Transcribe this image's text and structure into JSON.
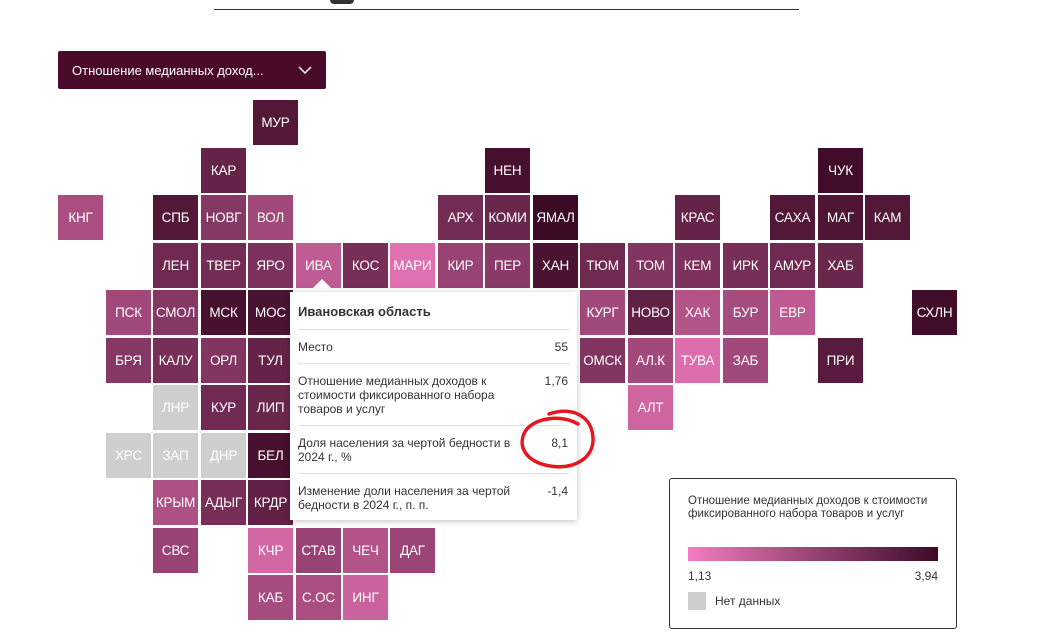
{
  "selector": {
    "label": "Отношение медианных доход...",
    "icon": "chevron-down-icon"
  },
  "colors": {
    "low": "#f27cbf",
    "high": "#3d0a26",
    "no_data": "#cfcfcf",
    "annotation": "#e8141e"
  },
  "tiles": [
    {
      "code": "МУР",
      "value": 0.88
    },
    {
      "code": "КАР",
      "value": 0.78
    },
    {
      "code": "НЕН",
      "value": 0.95
    },
    {
      "code": "ЧУК",
      "value": 0.98
    },
    {
      "code": "КНГ",
      "value": 0.4
    },
    {
      "code": "СПБ",
      "value": 0.88
    },
    {
      "code": "НОВГ",
      "value": 0.6
    },
    {
      "code": "ВОЛ",
      "value": 0.45
    },
    {
      "code": "АРХ",
      "value": 0.7
    },
    {
      "code": "КОМИ",
      "value": 0.75
    },
    {
      "code": "ЯМАЛ",
      "value": 1.0
    },
    {
      "code": "КРАС",
      "value": 0.78
    },
    {
      "code": "САХА",
      "value": 0.88
    },
    {
      "code": "МАГ",
      "value": 0.9
    },
    {
      "code": "КАМ",
      "value": 0.88
    },
    {
      "code": "ЛЕН",
      "value": 0.72
    },
    {
      "code": "ТВЕР",
      "value": 0.7
    },
    {
      "code": "ЯРО",
      "value": 0.65
    },
    {
      "code": "ИВА",
      "value": 0.28,
      "active": true
    },
    {
      "code": "КОС",
      "value": 0.68
    },
    {
      "code": "МАРИ",
      "value": 0.1
    },
    {
      "code": "КИР",
      "value": 0.5
    },
    {
      "code": "ПЕР",
      "value": 0.58
    },
    {
      "code": "ХАН",
      "value": 0.92
    },
    {
      "code": "ТЮМ",
      "value": 0.72
    },
    {
      "code": "ТОМ",
      "value": 0.62
    },
    {
      "code": "КЕМ",
      "value": 0.65
    },
    {
      "code": "ИРК",
      "value": 0.68
    },
    {
      "code": "АМУР",
      "value": 0.72
    },
    {
      "code": "ХАБ",
      "value": 0.75
    },
    {
      "code": "ПСК",
      "value": 0.45
    },
    {
      "code": "СМОЛ",
      "value": 0.6
    },
    {
      "code": "МСК",
      "value": 0.95
    },
    {
      "code": "МОС",
      "value": 0.92
    },
    {
      "code": "КУРГ",
      "value": 0.45
    },
    {
      "code": "НОВО",
      "value": 0.8
    },
    {
      "code": "ХАК",
      "value": 0.35
    },
    {
      "code": "БУР",
      "value": 0.42
    },
    {
      "code": "ЕВР",
      "value": 0.3
    },
    {
      "code": "СХЛН",
      "value": 0.98
    },
    {
      "code": "БРЯ",
      "value": 0.6
    },
    {
      "code": "КАЛУ",
      "value": 0.68
    },
    {
      "code": "ОРЛ",
      "value": 0.62
    },
    {
      "code": "ТУЛ",
      "value": 0.78
    },
    {
      "code": "ОМСК",
      "value": 0.62
    },
    {
      "code": "АЛ.К",
      "value": 0.45
    },
    {
      "code": "ТУВА",
      "value": 0.12
    },
    {
      "code": "ЗАБ",
      "value": 0.45
    },
    {
      "code": "ПРИ",
      "value": 0.85
    },
    {
      "code": "ЛНР",
      "no_data": true
    },
    {
      "code": "КУР",
      "value": 0.72
    },
    {
      "code": "ЛИП",
      "value": 0.75
    },
    {
      "code": "АЛТ",
      "value": 0.2
    },
    {
      "code": "ХРС",
      "no_data": true
    },
    {
      "code": "ЗАП",
      "no_data": true
    },
    {
      "code": "ДНР",
      "no_data": true
    },
    {
      "code": "БЕЛ",
      "value": 0.95
    },
    {
      "code": "КРЫМ",
      "value": 0.38
    },
    {
      "code": "АДЫГ",
      "value": 0.68
    },
    {
      "code": "КРДР",
      "value": 0.8
    },
    {
      "code": "СВС",
      "value": 0.5
    },
    {
      "code": "КЧР",
      "value": 0.18
    },
    {
      "code": "СТАВ",
      "value": 0.5
    },
    {
      "code": "ЧЕЧ",
      "value": 0.35
    },
    {
      "code": "ДАГ",
      "value": 0.48
    },
    {
      "code": "КАБ",
      "value": 0.42
    },
    {
      "code": "С.ОС",
      "value": 0.4
    },
    {
      "code": "ИНГ",
      "value": 0.22
    }
  ],
  "tooltip": {
    "title": "Ивановская область",
    "rows": [
      {
        "label": "Место",
        "value": "55"
      },
      {
        "label": "Отношение медианных доходов к стоимости фиксированного набора товаров и услуг",
        "value": "1,76"
      },
      {
        "label": "Доля населения за чертой бедности в 2024 г., %",
        "value": "8,1"
      },
      {
        "label": "Изменение доли населения за чертой бедности в 2024 г., п. п.",
        "value": "-1,4"
      }
    ]
  },
  "legend": {
    "title": "Отношение медианных доходов к стоимости фиксированного набора товаров и услуг",
    "min": "1,13",
    "max": "3,94",
    "no_data_label": "Нет данных"
  }
}
